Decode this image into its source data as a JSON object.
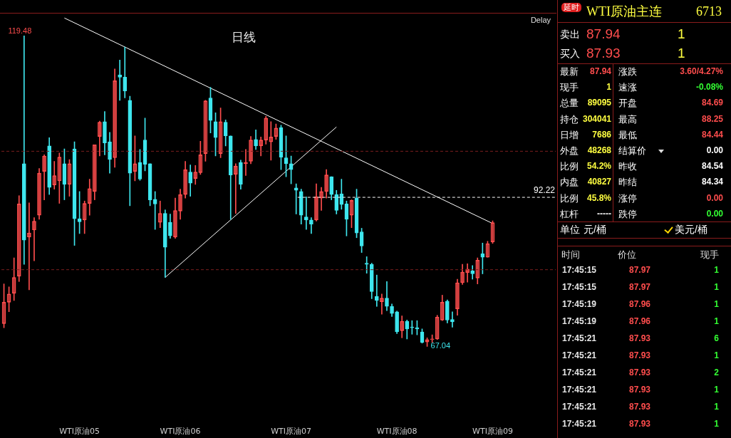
{
  "chart_data": [
    {
      "type": "candlestick",
      "title": "日线",
      "categories": [
        null,
        null,
        null,
        null,
        null,
        null,
        null,
        null,
        null,
        null,
        null,
        null,
        null,
        null,
        null,
        "WTI原油05",
        null,
        null,
        null,
        null,
        null,
        null,
        null,
        null,
        null,
        null,
        null,
        null,
        null,
        null,
        null,
        null,
        null,
        null,
        null,
        "WTI原油06",
        null,
        null,
        null,
        null,
        null,
        null,
        null,
        null,
        null,
        null,
        null,
        null,
        null,
        null,
        null,
        null,
        null,
        null,
        null,
        null,
        null,
        "WTI原油07",
        null,
        null,
        null,
        null,
        null,
        null,
        null,
        null,
        null,
        null,
        null,
        null,
        null,
        null,
        null,
        null,
        null,
        null,
        null,
        null,
        "WTI原油08",
        null,
        null,
        null,
        null,
        null,
        null,
        null,
        null,
        null,
        null,
        null,
        null,
        null,
        null,
        null,
        null,
        null,
        null,
        "WTI原油09"
      ],
      "ohlc": [
        [
          70.9,
          77.6,
          70.2,
          74.5
        ],
        [
          74.5,
          77.1,
          72.9,
          75.9
        ],
        [
          76.0,
          82.0,
          74.8,
          78.7
        ],
        [
          78.9,
          92.5,
          78.0,
          91.1
        ],
        [
          97.9,
          119.48,
          80.9,
          85.0
        ],
        [
          85.5,
          91.3,
          76.6,
          86.2
        ],
        [
          86.7,
          88.8,
          81.5,
          88.2
        ],
        [
          89.2,
          97.1,
          88.5,
          96.3
        ],
        [
          96.6,
          99.4,
          91.8,
          99.2
        ],
        [
          100.9,
          102.3,
          92.7,
          93.9
        ],
        [
          94.3,
          98.3,
          93.6,
          95.9
        ],
        [
          95.0,
          99.7,
          91.2,
          99.0
        ],
        [
          97.9,
          100.4,
          91.8,
          94.4
        ],
        [
          94.4,
          98.6,
          92.4,
          97.9
        ],
        [
          100.4,
          101.6,
          84.1,
          88.6
        ],
        [
          88.6,
          93.2,
          86.1,
          88.1
        ],
        [
          88.4,
          91.6,
          86.1,
          91.2
        ],
        [
          91.2,
          95.3,
          89.2,
          93.7
        ],
        [
          93.2,
          101.1,
          91.8,
          101.1
        ],
        [
          102.5,
          105.1,
          99.2,
          104.9
        ],
        [
          105.0,
          106.7,
          99.4,
          101.4
        ],
        [
          101.6,
          103.2,
          96.3,
          98.6
        ],
        [
          98.9,
          113.9,
          97.3,
          111.9
        ],
        [
          112.9,
          115.4,
          108.6,
          112.5
        ],
        [
          112.5,
          117.6,
          109.0,
          110.2
        ],
        [
          108.6,
          109.3,
          90.8,
          96.3
        ],
        [
          96.6,
          102.6,
          95.0,
          97.9
        ],
        [
          98.1,
          100.3,
          95.1,
          95.3
        ],
        [
          101.9,
          105.6,
          96.7,
          97.8
        ],
        [
          97.9,
          97.9,
          90.8,
          91.8
        ],
        [
          91.9,
          93.2,
          86.8,
          91.1
        ],
        [
          88.0,
          91.6,
          87.1,
          89.5
        ],
        [
          89.5,
          90.1,
          78.7,
          83.8
        ],
        [
          88.0,
          89.4,
          85.3,
          85.7
        ],
        [
          85.5,
          92.1,
          85.3,
          90.0
        ],
        [
          89.9,
          93.6,
          88.5,
          92.7
        ],
        [
          92.7,
          98.3,
          92.1,
          96.9
        ],
        [
          96.5,
          97.7,
          92.4,
          94.6
        ],
        [
          95.4,
          97.6,
          94.4,
          96.5
        ],
        [
          96.4,
          101.7,
          96.1,
          99.4
        ],
        [
          99.6,
          108.6,
          98.3,
          108.5
        ],
        [
          109.0,
          110.8,
          103.1,
          105.2
        ],
        [
          105.0,
          106.5,
          99.2,
          102.3
        ],
        [
          99.6,
          107.3,
          98.9,
          105.0
        ],
        [
          104.9,
          105.3,
          100.9,
          102.6
        ],
        [
          102.6,
          102.6,
          88.5,
          96.0
        ],
        [
          96.1,
          97.9,
          89.5,
          97.5
        ],
        [
          98.1,
          98.5,
          93.6,
          94.4
        ],
        [
          97.9,
          100.3,
          95.9,
          98.1
        ],
        [
          98.3,
          102.5,
          97.9,
          101.9
        ],
        [
          102.0,
          103.6,
          100.3,
          100.9
        ],
        [
          100.9,
          102.4,
          99.2,
          101.9
        ],
        [
          101.9,
          105.9,
          101.2,
          105.6
        ],
        [
          101.6,
          105.0,
          98.5,
          102.4
        ],
        [
          102.5,
          104.6,
          102.0,
          103.9
        ],
        [
          104.0,
          104.4,
          96.9,
          99.0
        ],
        [
          98.9,
          102.6,
          95.7,
          97.9
        ],
        [
          97.9,
          99.2,
          94.5,
          96.9
        ],
        [
          93.8,
          94.5,
          89.4,
          93.4
        ],
        [
          93.2,
          93.6,
          87.7,
          89.2
        ],
        [
          88.9,
          92.3,
          86.8,
          88.4
        ],
        [
          88.4,
          88.8,
          86.1,
          87.7
        ],
        [
          88.4,
          94.5,
          88.2,
          92.3
        ],
        [
          92.1,
          93.9,
          90.0,
          93.2
        ],
        [
          93.2,
          96.9,
          92.1,
          96.0
        ],
        [
          95.7,
          95.7,
          91.8,
          92.7
        ],
        [
          92.7,
          93.4,
          89.4,
          90.0
        ],
        [
          92.8,
          95.3,
          90.2,
          91.0
        ],
        [
          91.1,
          91.6,
          85.7,
          88.5
        ],
        [
          89.2,
          91.8,
          87.1,
          91.7
        ],
        [
          92.1,
          93.6,
          85.4,
          86.2
        ],
        [
          86.4,
          87.0,
          82.9,
          84.0
        ],
        [
          81.1,
          82.2,
          79.4,
          80.9
        ],
        [
          80.9,
          81.1,
          75.1,
          76.3
        ],
        [
          75.5,
          79.1,
          73.8,
          74.8
        ],
        [
          74.6,
          75.9,
          72.5,
          75.2
        ],
        [
          75.2,
          78.0,
          73.1,
          73.8
        ],
        [
          73.8,
          74.2,
          72.1,
          72.6
        ],
        [
          72.9,
          73.0,
          69.2,
          69.5
        ],
        [
          69.7,
          72.2,
          68.5,
          71.3
        ],
        [
          71.3,
          71.5,
          68.3,
          70.0
        ],
        [
          70.3,
          71.4,
          69.1,
          70.2
        ],
        [
          70.2,
          71.4,
          69.0,
          70.0
        ],
        [
          69.5,
          70.0,
          67.6,
          67.7
        ],
        [
          67.8,
          68.5,
          67.04,
          68.2
        ],
        [
          68.2,
          69.0,
          67.7,
          68.3
        ],
        [
          68.3,
          72.3,
          68.2,
          72.0
        ],
        [
          71.5,
          75.7,
          71.4,
          74.5
        ],
        [
          74.7,
          74.9,
          71.0,
          71.5
        ],
        [
          71.6,
          72.9,
          70.3,
          71.2
        ],
        [
          73.4,
          78.4,
          72.3,
          77.8
        ],
        [
          77.8,
          80.9,
          77.5,
          79.6
        ],
        [
          79.5,
          81.0,
          77.9,
          80.1
        ],
        [
          79.8,
          80.7,
          78.4,
          79.3
        ],
        [
          78.6,
          82.0,
          77.6,
          81.6
        ],
        [
          82.7,
          84.5,
          79.3,
          82.1
        ],
        [
          82.1,
          84.8,
          82.1,
          84.4
        ],
        [
          84.69,
          88.25,
          84.44,
          87.94
        ]
      ],
      "colors": [
        "#ff4d4d",
        "#ff4d4d",
        "#ff4d4d",
        "#ff4d4d",
        "#3ee6ee",
        "#ff4d4d",
        "#ff4d4d",
        "#ff4d4d",
        "#ff4d4d",
        "#3ee6ee",
        "#ff4d4d",
        "#ff4d4d",
        "#3ee6ee",
        "#ff4d4d",
        "#3ee6ee",
        "#3ee6ee",
        "#ff4d4d",
        "#ff4d4d",
        "#ff4d4d",
        "#ff4d4d",
        "#3ee6ee",
        "#3ee6ee",
        "#ff4d4d",
        "#3ee6ee",
        "#3ee6ee",
        "#3ee6ee",
        "#ff4d4d",
        "#3ee6ee",
        "#3ee6ee",
        "#3ee6ee",
        "#3ee6ee",
        "#ff4d4d",
        "#3ee6ee",
        "#3ee6ee",
        "#ff4d4d",
        "#ff4d4d",
        "#ff4d4d",
        "#3ee6ee",
        "#ff4d4d",
        "#ff4d4d",
        "#ff4d4d",
        "#3ee6ee",
        "#3ee6ee",
        "#ff4d4d",
        "#3ee6ee",
        "#3ee6ee",
        "#ff4d4d",
        "#3ee6ee",
        "#ff4d4d",
        "#ff4d4d",
        "#3ee6ee",
        "#ff4d4d",
        "#ff4d4d",
        "#ff4d4d",
        "#ff4d4d",
        "#3ee6ee",
        "#3ee6ee",
        "#3ee6ee",
        "#3ee6ee",
        "#3ee6ee",
        "#3ee6ee",
        "#3ee6ee",
        "#ff4d4d",
        "#ff4d4d",
        "#ff4d4d",
        "#3ee6ee",
        "#3ee6ee",
        "#3ee6ee",
        "#3ee6ee",
        "#ff4d4d",
        "#3ee6ee",
        "#3ee6ee",
        "#3ee6ee",
        "#3ee6ee",
        "#3ee6ee",
        "#ff4d4d",
        "#3ee6ee",
        "#3ee6ee",
        "#3ee6ee",
        "#ff4d4d",
        "#3ee6ee",
        "#3ee6ee",
        "#3ee6ee",
        "#3ee6ee",
        "#ff4d4d",
        "#ff4d4d",
        "#ff4d4d",
        "#ff4d4d",
        "#3ee6ee",
        "#3ee6ee",
        "#ff4d4d",
        "#ff4d4d",
        "#ff4d4d",
        "#3ee6ee",
        "#ff4d4d",
        "#3ee6ee",
        "#ff4d4d",
        "#ff4d4d"
      ],
      "series": [
        {
          "type": "line",
          "color": "#ffffff",
          "values": [
            null,
            null,
            null,
            null,
            null,
            null,
            null,
            null,
            null,
            null,
            null,
            null,
            122.5,
            null,
            null,
            null,
            null,
            null,
            null,
            null,
            null,
            null,
            null,
            null,
            null,
            null,
            null,
            null,
            null,
            null,
            null,
            null,
            null,
            null,
            null,
            null,
            null,
            null,
            null,
            null,
            null,
            null,
            null,
            null,
            null,
            null,
            null,
            null,
            null,
            null,
            null,
            null,
            null,
            null,
            null,
            null,
            null,
            null,
            null,
            null,
            null,
            null,
            null,
            null,
            null,
            null,
            null,
            null,
            null,
            null,
            null,
            null,
            null,
            null,
            null,
            null,
            null,
            null,
            null,
            null,
            null,
            null,
            null,
            null,
            null,
            null,
            null,
            null,
            null,
            null,
            null,
            null,
            null,
            null,
            null,
            null,
            null,
            87.8
          ]
        },
        {
          "type": "line",
          "color": "#ffffff",
          "values": [
            null,
            null,
            null,
            null,
            null,
            null,
            null,
            null,
            null,
            null,
            null,
            null,
            null,
            null,
            null,
            null,
            null,
            null,
            null,
            null,
            null,
            null,
            null,
            null,
            null,
            null,
            null,
            null,
            null,
            null,
            null,
            null,
            78.7,
            null,
            null,
            null,
            null,
            null,
            null,
            null,
            null,
            null,
            null,
            null,
            null,
            null,
            null,
            null,
            null,
            null,
            null,
            null,
            null,
            null,
            null,
            null,
            null,
            null,
            null,
            null,
            null,
            null,
            null,
            null,
            null,
            null,
            104.1,
            null,
            null,
            null,
            null,
            null,
            null,
            null,
            null,
            null,
            null,
            null,
            null,
            null,
            null,
            null,
            null,
            null,
            null,
            null,
            null,
            null,
            null,
            null,
            null,
            null,
            null,
            null,
            null,
            null,
            null,
            null
          ]
        }
      ],
      "tick_labels": "x",
      "ref_lines": [
        {
          "axis": "y",
          "value": 92.22,
          "label": "92.22",
          "color": "#ffffff",
          "line_style": "dashed"
        },
        {
          "axis": "y",
          "value": 100,
          "color": "#7a1e1e",
          "line_style": "dashed"
        },
        {
          "axis": "y",
          "value": 80,
          "color": "#7a1e1e",
          "line_style": "dashed"
        }
      ],
      "annotations": [
        "119.48",
        "67.04",
        "Delay"
      ]
    },
    {
      "type": "other",
      "title": "WTI原油主连",
      "annotations": [
        "延时",
        "6713",
        "卖出",
        "87.94",
        "1",
        "买入",
        "87.93",
        "1",
        "最新",
        "87.94",
        "涨跌",
        "3.60/4.27%",
        "现手",
        "1",
        "速涨",
        "-0.08%",
        "总量",
        "89095",
        "开盘",
        "84.69",
        "持仓",
        "304041",
        "最高",
        "88.25",
        "日增",
        "7686",
        "最低",
        "84.44",
        "外盘",
        "48268",
        "结算价",
        "0.00",
        "比例",
        "54.2%",
        "昨收",
        "84.54",
        "内盘",
        "40827",
        "昨结",
        "84.34",
        "比例",
        "45.8%",
        "涨停",
        "0.00",
        "杠杆",
        "-----",
        "跌停",
        "0.00",
        "单位",
        "元/桶",
        "美元/桶",
        "时间",
        "价位",
        "现手",
        "17:45:15",
        "87.97",
        "1",
        "17:45:15",
        "87.97",
        "1",
        "17:45:19",
        "87.96",
        "1",
        "17:45:19",
        "87.96",
        "1",
        "17:45:21",
        "87.93",
        "6",
        "17:45:21",
        "87.93",
        "1",
        "17:45:21",
        "87.93",
        "2",
        "17:45:21",
        "87.93",
        "1",
        "17:45:21",
        "87.93",
        "1",
        "17:45:21",
        "87.93",
        "1"
      ]
    }
  ]
}
